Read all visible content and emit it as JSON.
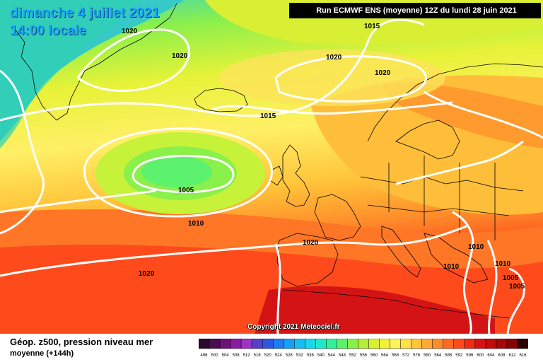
{
  "header": {
    "date": "dimanche 4 juillet 2021",
    "time": "14:00 locale",
    "run": "Run ECMWF ENS (moyenne) 12Z du lundi 28 juin 2021"
  },
  "copyright": "Copyright 2021 Meteociel.fr",
  "footer": {
    "title": "Géop. z500, pression niveau mer",
    "subtitle": "moyenne   (+144h)"
  },
  "isobar_labels": [
    "1020",
    "1020",
    "1015",
    "1020",
    "1020",
    "1015",
    "1005",
    "1010",
    "1020",
    "1020",
    "1010",
    "1010",
    "1010",
    "1005",
    "1005"
  ],
  "legend": {
    "values": [
      "496",
      "500",
      "504",
      "508",
      "512",
      "516",
      "520",
      "524",
      "528",
      "532",
      "536",
      "540",
      "544",
      "548",
      "552",
      "556",
      "560",
      "564",
      "568",
      "572",
      "576",
      "580",
      "584",
      "588",
      "592",
      "596",
      "600",
      "604",
      "608",
      "612",
      "616"
    ],
    "colors": [
      "#2a0a2e",
      "#4a0d52",
      "#6e1278",
      "#8a1aa0",
      "#9c33c2",
      "#5a3fc8",
      "#2e57e0",
      "#1f7cf0",
      "#1c9cf5",
      "#18bcf2",
      "#19d8e6",
      "#1de8c8",
      "#30f09a",
      "#5cf26e",
      "#8af04a",
      "#b4ee36",
      "#d8f030",
      "#f2f23a",
      "#fff25a",
      "#ffe04a",
      "#ffc43a",
      "#ffa832",
      "#ff8c2a",
      "#ff6a22",
      "#ff4a1c",
      "#f02a16",
      "#d81212",
      "#c00c0c",
      "#a40808",
      "#880404",
      "#2a0000"
    ]
  },
  "colors": {
    "header_text": "#1aa6ff",
    "isobar": "#ffffff",
    "coast": "#000000"
  }
}
